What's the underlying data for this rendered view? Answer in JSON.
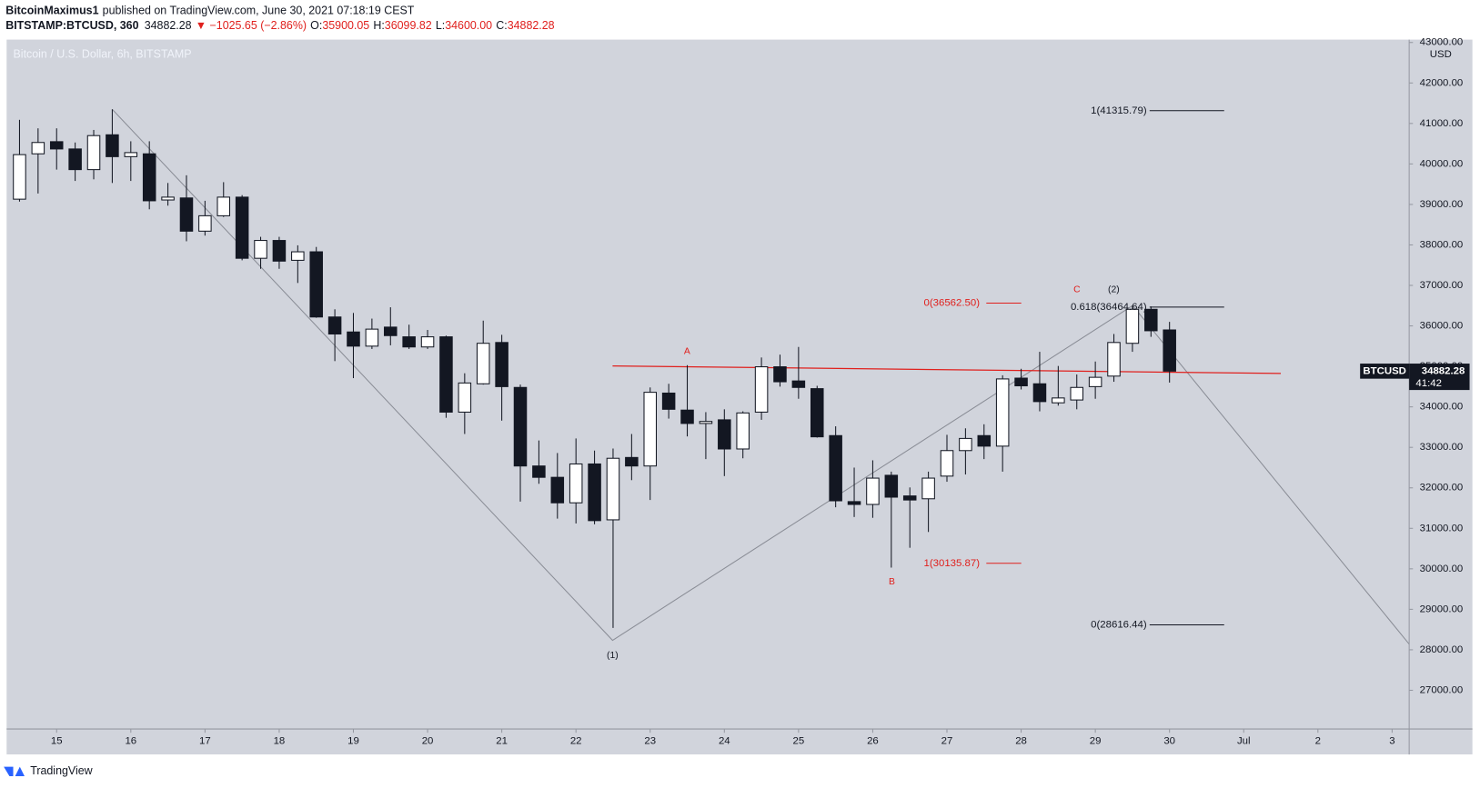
{
  "header": {
    "author": "BitcoinMaximus1",
    "published": "published on TradingView.com, June 30, 2021 07:18:19 CEST",
    "symbol": "BITSTAMP:BTCUSD, 360",
    "last": "34882.28",
    "change": "▼ −1025.65 (−2.86%)",
    "o_label": "O:",
    "o": "35900.05",
    "h_label": "H:",
    "h": "36099.82",
    "l_label": "L:",
    "l": "34600.00",
    "c_label": "C:",
    "c": "34882.28"
  },
  "footer": "TradingView",
  "chart_data": {
    "type": "candlestick",
    "title": "Bitcoin / U.S. Dollar, 6h, BITSTAMP",
    "y_unit": "USD",
    "price_label": "BTCUSD",
    "countdown": "41:42",
    "up_color": "#ffffff",
    "down_color": "#131722",
    "grid": false,
    "x": [
      14.5,
      14.75,
      15,
      15.25,
      15.5,
      15.75,
      16,
      16.25,
      16.5,
      16.75,
      17,
      17.25,
      17.5,
      17.75,
      18,
      18.25,
      18.5,
      18.75,
      19,
      19.25,
      19.5,
      19.75,
      20,
      20.25,
      20.5,
      20.75,
      21,
      21.25,
      21.5,
      21.75,
      22,
      22.25,
      22.5,
      22.75,
      23,
      23.25,
      23.5,
      23.75,
      24,
      24.25,
      24.5,
      24.75,
      25,
      25.25,
      25.5,
      25.75,
      26,
      26.25,
      26.5,
      26.75,
      27,
      27.25,
      27.5,
      27.75,
      28,
      28.25,
      28.5,
      28.75,
      29,
      29.25,
      29.5,
      29.75,
      30
    ],
    "open": [
      39130,
      40250,
      40550,
      40370,
      39860,
      40720,
      40180,
      40250,
      39110,
      39160,
      38340,
      38720,
      39180,
      37670,
      38110,
      37620,
      37830,
      36220,
      35850,
      35500,
      35970,
      35730,
      35480,
      35730,
      33870,
      34570,
      35590,
      34480,
      32540,
      32260,
      31630,
      32590,
      31210,
      32750,
      32540,
      34340,
      33920,
      33590,
      33680,
      32960,
      33870,
      34990,
      34640,
      34450,
      33290,
      31660,
      31590,
      32310,
      31800,
      31730,
      32290,
      32920,
      33290,
      33030,
      34710,
      34570,
      34100,
      34170,
      34500,
      34760,
      35570,
      36410,
      35900.05
    ],
    "high": [
      41090,
      40880,
      40880,
      40530,
      40840,
      41350,
      40560,
      40560,
      39530,
      39720,
      39090,
      39550,
      39230,
      38200,
      38200,
      37990,
      37950,
      36410,
      36320,
      36180,
      36460,
      36030,
      35900,
      35760,
      34830,
      36130,
      35780,
      34550,
      33170,
      32860,
      33220,
      32920,
      32970,
      33330,
      34480,
      34570,
      35030,
      33870,
      33940,
      33890,
      35220,
      35290,
      35480,
      34520,
      33520,
      32500,
      32680,
      32400,
      32010,
      32400,
      33310,
      33470,
      33570,
      34780,
      34940,
      35360,
      35010,
      34800,
      35120,
      35800,
      36500,
      36480,
      36099.82
    ],
    "low": [
      39070,
      39270,
      39860,
      39580,
      39620,
      39530,
      39580,
      38880,
      38970,
      38090,
      38230,
      38690,
      37620,
      37410,
      37410,
      37060,
      36200,
      35130,
      34710,
      35430,
      35520,
      35430,
      35430,
      33730,
      33330,
      34550,
      33660,
      31660,
      32100,
      31240,
      31120,
      31100,
      28540,
      32190,
      31700,
      33710,
      33270,
      32710,
      32290,
      32730,
      33680,
      34500,
      34200,
      33240,
      31520,
      31280,
      31260,
      30030,
      30520,
      30910,
      32150,
      32330,
      32710,
      32400,
      34430,
      33890,
      34030,
      33940,
      34200,
      34620,
      35360,
      35730,
      34600
    ],
    "close": [
      40230,
      40530,
      40370,
      39860,
      40700,
      40180,
      40280,
      39090,
      39180,
      38340,
      38720,
      39180,
      37670,
      38110,
      37600,
      37830,
      36220,
      35800,
      35500,
      35920,
      35760,
      35480,
      35730,
      33870,
      34590,
      35570,
      34500,
      32540,
      32260,
      31630,
      32590,
      31190,
      32730,
      32540,
      34360,
      33940,
      33590,
      33640,
      32960,
      33850,
      34990,
      34620,
      34480,
      33260,
      31680,
      31590,
      32240,
      31770,
      31700,
      32240,
      32920,
      33220,
      33030,
      34690,
      34520,
      34130,
      34220,
      34480,
      34730,
      35590,
      36410,
      35880,
      34882.28
    ],
    "xlim": [
      14.326,
      33.23
    ],
    "xticks": [
      15,
      16,
      17,
      18,
      19,
      20,
      21,
      22,
      23,
      24,
      25,
      26,
      27,
      28,
      29,
      30,
      {
        "value": 31,
        "label": "Jul"
      },
      {
        "value": 32,
        "label": "2"
      },
      {
        "value": 33,
        "label": "3"
      }
    ],
    "ylim": [
      26044,
      43071
    ],
    "yticks": [
      {
        "value": 27000,
        "label": "27000.00"
      },
      {
        "value": 28000,
        "label": "28000.00"
      },
      {
        "value": 29000,
        "label": "29000.00"
      },
      {
        "value": 30000,
        "label": "30000.00"
      },
      {
        "value": 31000,
        "label": "31000.00"
      },
      {
        "value": 32000,
        "label": "32000.00"
      },
      {
        "value": 33000,
        "label": "33000.00"
      },
      {
        "value": 34000,
        "label": "34000.00"
      },
      {
        "value": 35000,
        "label": "35000.00"
      },
      {
        "value": 36000,
        "label": "36000.00"
      },
      {
        "value": 37000,
        "label": "37000.00"
      },
      {
        "value": 38000,
        "label": "38000.00"
      },
      {
        "value": 39000,
        "label": "39000.00"
      },
      {
        "value": 40000,
        "label": "40000.00"
      },
      {
        "value": 41000,
        "label": "41000.00"
      },
      {
        "value": 42000,
        "label": "42000.00"
      },
      {
        "value": 43000,
        "label": "43000.00"
      }
    ],
    "levels": [
      {
        "value": 41315.79,
        "label": "1(41315.79)",
        "color": "#131722"
      },
      {
        "value": 36464.64,
        "label": "0.618(36464.64)",
        "color": "#131722"
      },
      {
        "value": 28616.44,
        "label": "0(28616.44)",
        "color": "#131722"
      },
      {
        "value": 36562.5,
        "label": "0(36562.50)",
        "color": "#e0201d"
      },
      {
        "value": 30135.87,
        "label": "1(30135.87)",
        "color": "#e0201d"
      }
    ],
    "wave_labels": [
      {
        "label": "(1)",
        "color": "#131722"
      },
      {
        "label": "(2)",
        "color": "#131722"
      },
      {
        "label": "A",
        "color": "#e0201d"
      },
      {
        "label": "B",
        "color": "#e0201d"
      },
      {
        "label": "C",
        "color": "#e0201d"
      }
    ]
  }
}
